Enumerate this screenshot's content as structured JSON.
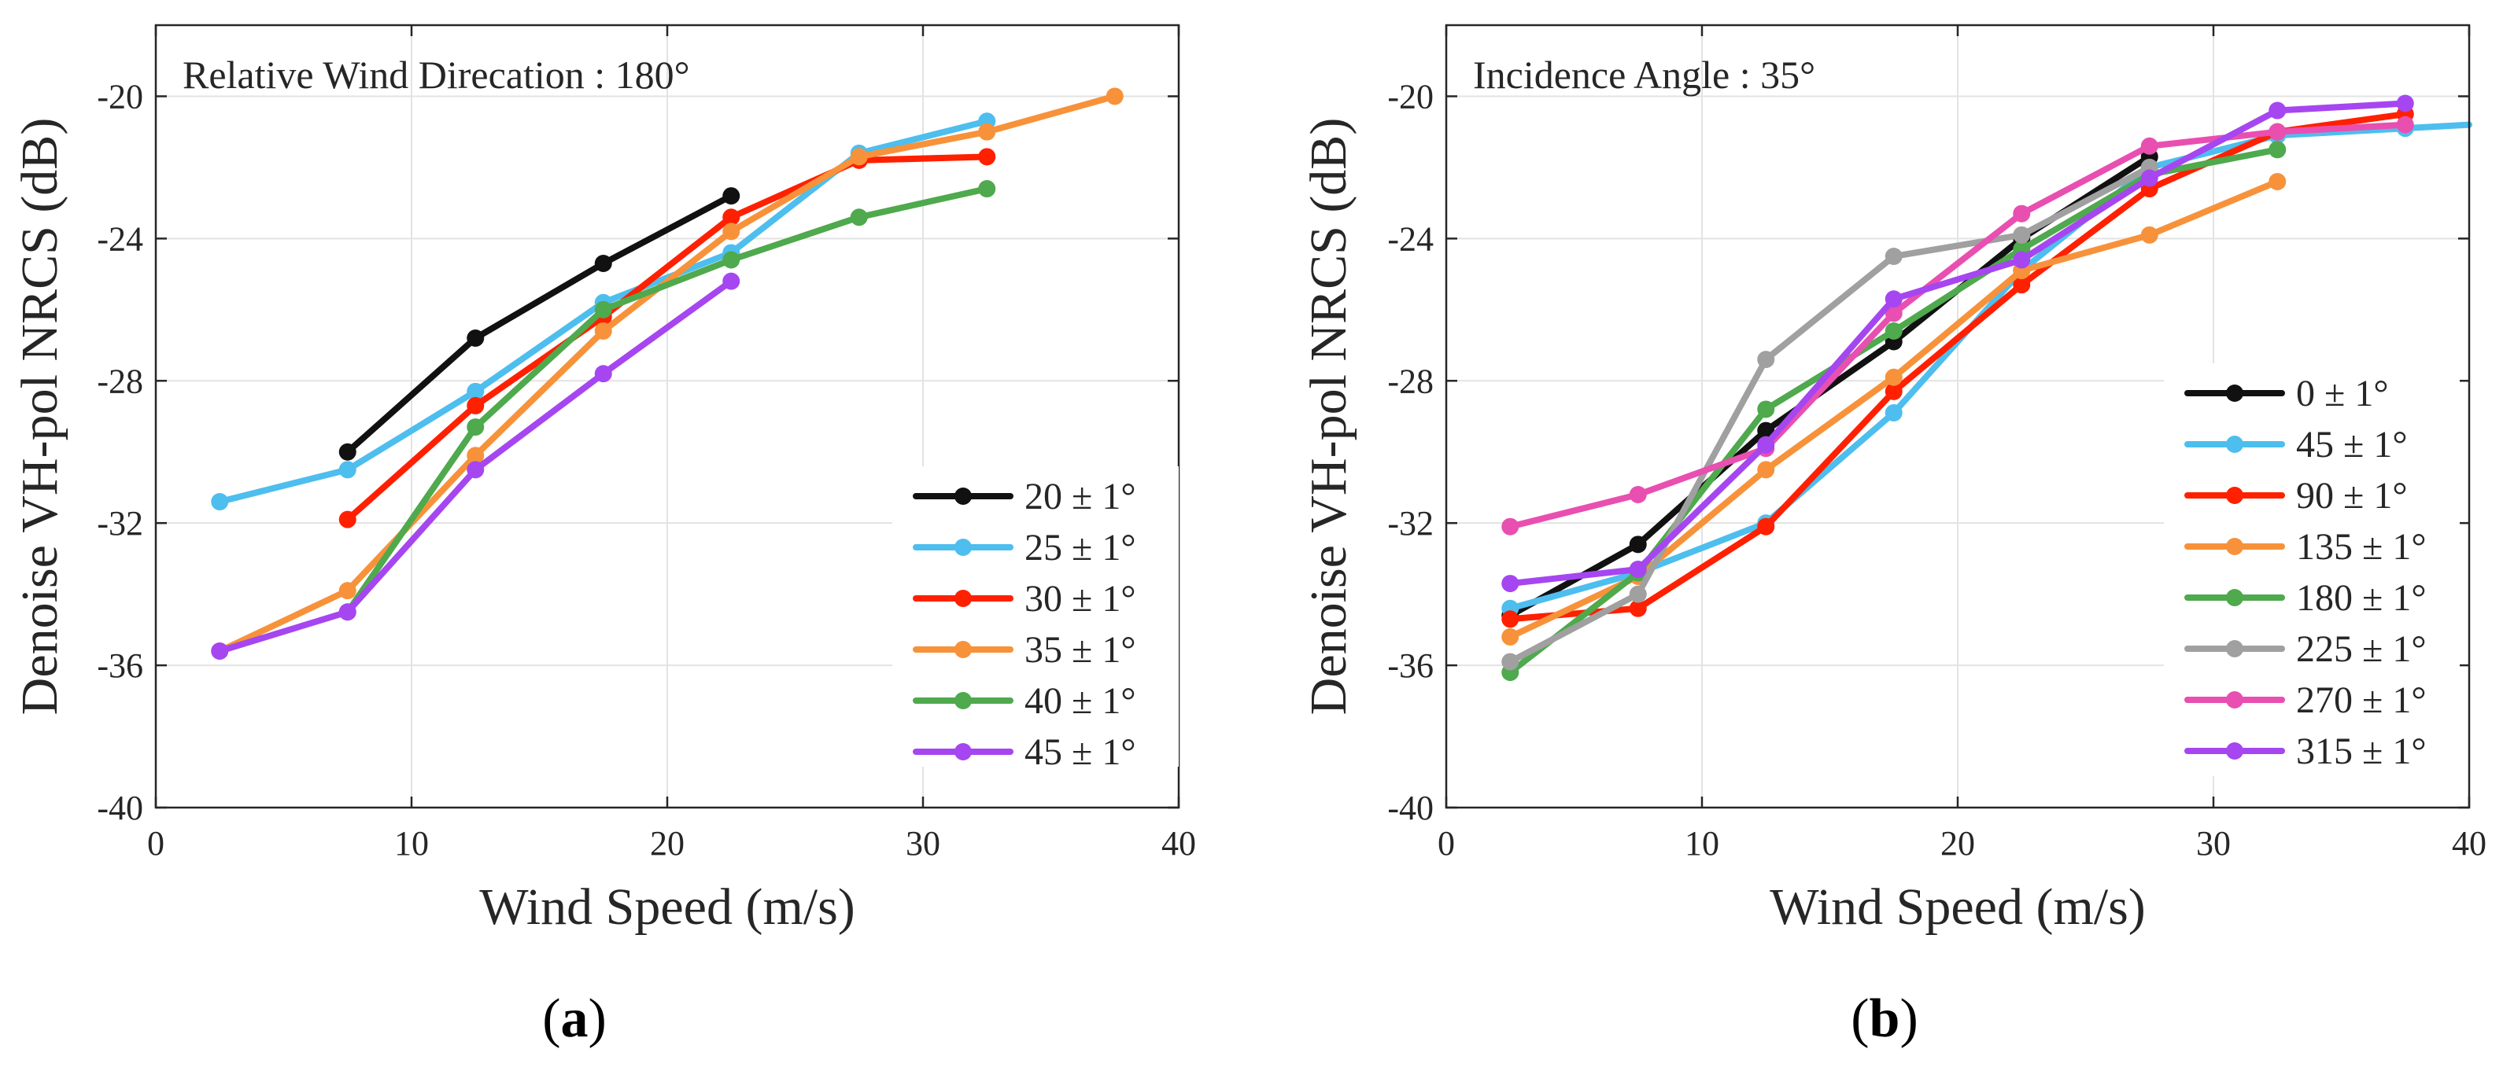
{
  "chart_data": [
    {
      "type": "line",
      "panel_label": "(a)",
      "panel_letter": "a",
      "annotation": "Relative Wind Direcation : 180°",
      "xlabel": "Wind Speed (m/s)",
      "ylabel": "Denoise VH-pol NRCS (dB)",
      "xlim": [
        0,
        40
      ],
      "ylim": [
        -40,
        -18
      ],
      "xticks": [
        0,
        10,
        20,
        30,
        40
      ],
      "yticks": [
        -40,
        -36,
        -32,
        -28,
        -24,
        -20
      ],
      "grid": true,
      "legend_position": "bottom-right",
      "series": [
        {
          "name": "20 ± 1°",
          "color": "#111111",
          "x": [
            7.5,
            12.5,
            17.5,
            22.5
          ],
          "y": [
            -30.0,
            -26.8,
            -24.7,
            -22.8
          ]
        },
        {
          "name": "25 ± 1°",
          "color": "#4DBEEE",
          "x": [
            2.5,
            7.5,
            12.5,
            17.5,
            22.5,
            27.5,
            32.5
          ],
          "y": [
            -31.4,
            -30.5,
            -28.3,
            -25.8,
            -24.4,
            -21.6,
            -20.7
          ]
        },
        {
          "name": "30 ± 1°",
          "color": "#FF2000",
          "x": [
            7.5,
            12.5,
            17.5,
            22.5,
            27.5,
            32.5
          ],
          "y": [
            -31.9,
            -28.7,
            -26.2,
            -23.4,
            -21.8,
            -21.7
          ]
        },
        {
          "name": "35 ± 1°",
          "color": "#F7923A",
          "x": [
            2.5,
            7.5,
            12.5,
            17.5,
            22.5,
            27.5,
            32.5,
            37.5
          ],
          "y": [
            -35.6,
            -33.9,
            -30.1,
            -26.6,
            -23.8,
            -21.7,
            -21.0,
            -20.0
          ]
        },
        {
          "name": "40 ± 1°",
          "color": "#4FA94D",
          "x": [
            7.5,
            12.5,
            17.5,
            22.5,
            27.5,
            32.5
          ],
          "y": [
            -34.5,
            -29.3,
            -26.0,
            -24.6,
            -23.4,
            -22.6
          ]
        },
        {
          "name": "45 ± 1°",
          "color": "#A646F0",
          "x": [
            2.5,
            7.5,
            12.5,
            17.5,
            22.5
          ],
          "y": [
            -35.6,
            -34.5,
            -30.5,
            -27.8,
            -25.2
          ]
        }
      ]
    },
    {
      "type": "line",
      "panel_label": "(b)",
      "panel_letter": "b",
      "annotation": "Incidence Angle : 35°",
      "xlabel": "Wind Speed (m/s)",
      "ylabel": "Denoise VH-pol NRCS (dB)",
      "xlim": [
        0,
        40
      ],
      "ylim": [
        -40,
        -18
      ],
      "xticks": [
        0,
        10,
        20,
        30,
        40
      ],
      "yticks": [
        -40,
        -36,
        -32,
        -28,
        -24,
        -20
      ],
      "grid": true,
      "legend_position": "right",
      "series": [
        {
          "name": "0 ± 1°",
          "color": "#111111",
          "x": [
            2.5,
            7.5,
            12.5,
            17.5,
            22.5,
            27.5
          ],
          "y": [
            -34.6,
            -32.6,
            -29.4,
            -26.9,
            -24.0,
            -21.7
          ]
        },
        {
          "name": "45 ± 1°",
          "color": "#4DBEEE",
          "x": [
            2.5,
            7.5,
            12.5,
            17.5,
            22.5,
            27.5,
            32.5,
            37.5,
            40.0
          ],
          "y": [
            -34.4,
            -33.4,
            -32.0,
            -28.9,
            -24.9,
            -22.0,
            -21.1,
            -20.9,
            -20.8
          ]
        },
        {
          "name": "90 ± 1°",
          "color": "#FF2000",
          "x": [
            2.5,
            7.5,
            12.5,
            17.5,
            22.5,
            27.5,
            32.5,
            37.5
          ],
          "y": [
            -34.7,
            -34.4,
            -32.1,
            -28.3,
            -25.3,
            -22.6,
            -21.0,
            -20.5
          ]
        },
        {
          "name": "135 ± 1°",
          "color": "#F7923A",
          "x": [
            2.5,
            7.5,
            12.5,
            17.5,
            22.5,
            27.5,
            32.5
          ],
          "y": [
            -35.2,
            -33.5,
            -30.5,
            -27.9,
            -24.9,
            -23.9,
            -22.4
          ]
        },
        {
          "name": "180 ± 1°",
          "color": "#4FA94D",
          "x": [
            2.5,
            7.5,
            12.5,
            17.5,
            22.5,
            27.5,
            32.5
          ],
          "y": [
            -36.2,
            -33.4,
            -28.8,
            -26.6,
            -24.3,
            -22.2,
            -21.5
          ]
        },
        {
          "name": "225 ± 1°",
          "color": "#A0A0A0",
          "x": [
            2.5,
            7.5,
            12.5,
            17.5,
            22.5,
            27.5
          ],
          "y": [
            -35.9,
            -34.0,
            -27.4,
            -24.5,
            -23.9,
            -22.0
          ]
        },
        {
          "name": "270 ± 1°",
          "color": "#E84FB0",
          "x": [
            2.5,
            7.5,
            12.5,
            17.5,
            22.5,
            27.5,
            32.5,
            37.5
          ],
          "y": [
            -32.1,
            -31.2,
            -29.9,
            -26.1,
            -23.3,
            -21.4,
            -21.0,
            -20.8
          ]
        },
        {
          "name": "315 ± 1°",
          "color": "#A646F0",
          "x": [
            2.5,
            7.5,
            12.5,
            17.5,
            22.5,
            27.5,
            32.5,
            37.5
          ],
          "y": [
            -33.7,
            -33.3,
            -29.8,
            -25.7,
            -24.6,
            -22.3,
            -20.4,
            -20.2
          ]
        }
      ]
    }
  ]
}
